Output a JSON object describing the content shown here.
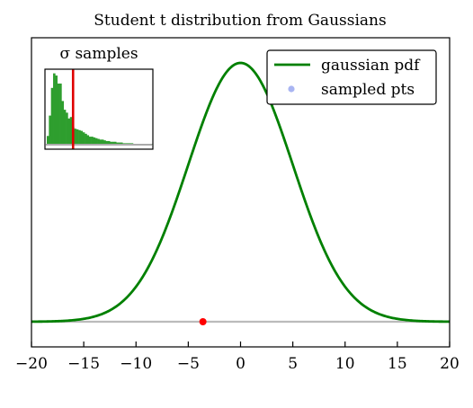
{
  "chart_data": [
    {
      "type": "line",
      "title": "Student t distribution from Gaussians",
      "xlim": [
        -20,
        20
      ],
      "x_ticks": [
        -20,
        -15,
        -10,
        -5,
        0,
        5,
        10,
        15,
        20
      ],
      "x_tick_labels": [
        "−20",
        "−15",
        "−10",
        "−5",
        "0",
        "5",
        "10",
        "15",
        "20"
      ],
      "series": [
        {
          "name": "gaussian pdf",
          "color": "#008000",
          "distribution": {
            "mean": 0,
            "sigma": 5
          }
        },
        {
          "name": "sampled pts",
          "color": "#9aa8f0",
          "marker": "circle",
          "points": []
        }
      ],
      "highlight_point": {
        "x": -3.6,
        "y": 0,
        "color": "#ff0000"
      },
      "baseline_color": "#bbbbbb",
      "legend_position": "top-right",
      "grid": false,
      "y_ticks_visible": false
    },
    {
      "type": "bar",
      "title": "σ samples",
      "bar_color": "#2e9e2e",
      "marker_line_color": "#e00000",
      "marker_line_bin": 12,
      "counts": [
        0.12,
        0.4,
        0.78,
        0.98,
        0.95,
        0.84,
        0.84,
        0.6,
        0.48,
        0.44,
        0.36,
        0.38,
        0.24,
        0.22,
        0.21,
        0.2,
        0.19,
        0.17,
        0.15,
        0.13,
        0.11,
        0.11,
        0.1,
        0.09,
        0.08,
        0.07,
        0.07,
        0.06,
        0.05,
        0.05,
        0.04,
        0.04,
        0.04,
        0.03,
        0.03,
        0.03,
        0.02,
        0.02,
        0.02,
        0.02,
        0.02,
        0.01,
        0.01,
        0.01,
        0.01,
        0.01,
        0.01,
        0.01,
        0.01,
        0.01
      ],
      "grid": false
    }
  ]
}
